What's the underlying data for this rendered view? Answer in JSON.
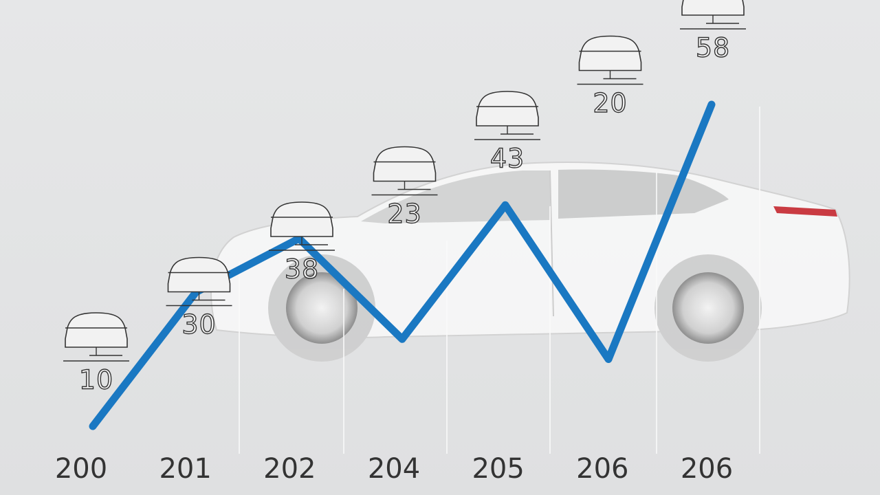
{
  "chart_data": {
    "type": "line",
    "categories": [
      "200",
      "201",
      "202",
      "204",
      "205",
      "206",
      "206"
    ],
    "values": [
      10,
      30,
      38,
      23,
      43,
      20,
      58
    ],
    "color": "#1a78c2"
  }
}
